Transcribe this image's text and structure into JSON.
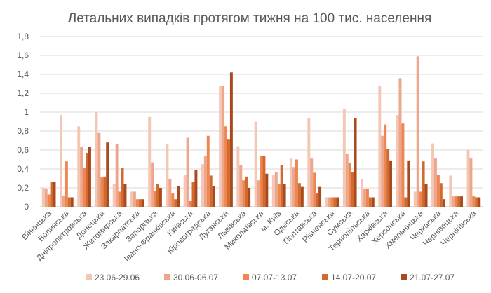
{
  "chart_data": {
    "type": "bar",
    "title": "Летальних випадків протягом тижня на 100 тис. населення",
    "xlabel": "",
    "ylabel": "",
    "ylim": [
      0,
      1.8
    ],
    "yticks": [
      "0",
      "0,2",
      "0,4",
      "0,6",
      "0,8",
      "1",
      "1,2",
      "1,4",
      "1,6",
      "1,8"
    ],
    "grid": true,
    "legend_position": "bottom",
    "categories": [
      "Вінницька",
      "Волинська",
      "Дніпропетровська",
      "Донецька",
      "Житомирська",
      "Закарпатська",
      "Запорізька",
      "Івано-Франківська",
      "Київська",
      "Кіровоградська",
      "Луганська",
      "Львівська",
      "Миколаївська",
      "м. Київ",
      "Одеська",
      "Полтавська",
      "Рівненська",
      "Сумська",
      "Тернопільська",
      "Харківська",
      "Херсонська",
      "Хмельницька",
      "Черкаська",
      "Чернівецька",
      "Чернігівська"
    ],
    "series": [
      {
        "name": "23.06-29.06",
        "color": "#f4c7b5",
        "values": [
          0.2,
          0.97,
          0.85,
          1.0,
          0.24,
          0.16,
          0.95,
          0.66,
          0.34,
          0.45,
          1.28,
          0.64,
          0.9,
          0.34,
          0.51,
          0.94,
          0.1,
          1.03,
          0.29,
          1.28,
          0.97,
          0.16,
          0.67,
          0.33,
          0.6
        ]
      },
      {
        "name": "30.06-06.07",
        "color": "#eda58c",
        "values": [
          0.19,
          0.12,
          0.63,
          0.78,
          0.66,
          0.16,
          0.47,
          0.29,
          0.73,
          0.54,
          1.28,
          0.44,
          0.28,
          0.37,
          0.42,
          0.51,
          0.1,
          0.56,
          0.19,
          0.75,
          1.36,
          1.59,
          0.51,
          0.11,
          0.51
        ]
      },
      {
        "name": "07.07-13.07",
        "color": "#ed8650",
        "values": [
          0.13,
          0.48,
          0.41,
          0.31,
          0.16,
          0.08,
          0.17,
          0.14,
          0.06,
          0.75,
          0.85,
          0.28,
          0.54,
          0.24,
          0.5,
          0.36,
          0.1,
          0.46,
          0.19,
          0.87,
          0.88,
          0.16,
          0.34,
          0.11,
          0.11
        ]
      },
      {
        "name": "14.07-20.07",
        "color": "#d2692d",
        "values": [
          0.26,
          0.1,
          0.57,
          0.32,
          0.41,
          0.08,
          0.24,
          0.08,
          0.26,
          0.33,
          0.71,
          0.32,
          0.54,
          0.44,
          0.25,
          0.14,
          0.1,
          0.37,
          0.1,
          0.61,
          0.1,
          0.48,
          0.25,
          0.11,
          0.1
        ]
      },
      {
        "name": "21.07-27.07",
        "color": "#a84a1e",
        "values": [
          0.26,
          0.1,
          0.63,
          0.68,
          0.24,
          0.08,
          0.2,
          0.22,
          0.39,
          0.22,
          1.42,
          0.2,
          0.35,
          0.24,
          0.21,
          0.21,
          0.1,
          0.94,
          0.1,
          0.49,
          0.49,
          0.24,
          0.08,
          0.11,
          0.1
        ]
      }
    ]
  }
}
